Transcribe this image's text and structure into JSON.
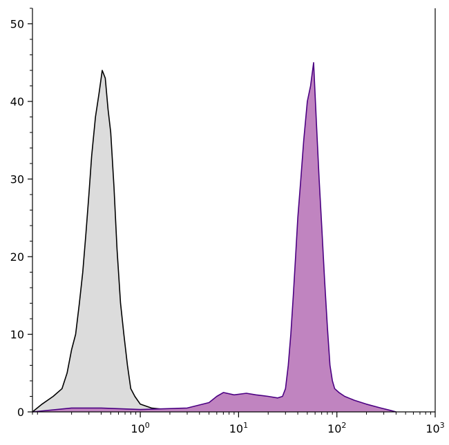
{
  "chart_data": {
    "type": "area",
    "title": "",
    "xlabel": "",
    "ylabel": "",
    "x_scale": "log",
    "xlim": [
      0.08,
      1000
    ],
    "ylim": [
      0,
      52
    ],
    "grid": false,
    "legend": "none",
    "x_ticks": [
      {
        "value": 1,
        "label": "10",
        "exp": "0"
      },
      {
        "value": 10,
        "label": "10",
        "exp": "1"
      },
      {
        "value": 100,
        "label": "10",
        "exp": "2"
      },
      {
        "value": 1000,
        "label": "10",
        "exp": "3"
      }
    ],
    "y_ticks": [
      0,
      10,
      20,
      30,
      40,
      50
    ],
    "series": [
      {
        "line_color": "#000000",
        "fill_color": "#dcdcdc",
        "points": [
          [
            0.08,
            0
          ],
          [
            0.1,
            1
          ],
          [
            0.13,
            2
          ],
          [
            0.16,
            3
          ],
          [
            0.18,
            5
          ],
          [
            0.2,
            8
          ],
          [
            0.22,
            10
          ],
          [
            0.24,
            14
          ],
          [
            0.26,
            18
          ],
          [
            0.28,
            23
          ],
          [
            0.3,
            28
          ],
          [
            0.32,
            33
          ],
          [
            0.35,
            38
          ],
          [
            0.38,
            41
          ],
          [
            0.41,
            44
          ],
          [
            0.44,
            43
          ],
          [
            0.47,
            39
          ],
          [
            0.5,
            36
          ],
          [
            0.54,
            29
          ],
          [
            0.58,
            21
          ],
          [
            0.63,
            14
          ],
          [
            0.68,
            10
          ],
          [
            0.74,
            6
          ],
          [
            0.8,
            3
          ],
          [
            0.88,
            2
          ],
          [
            1.0,
            1
          ],
          [
            1.3,
            0.5
          ],
          [
            1.8,
            0.3
          ],
          [
            2.5,
            0.2
          ],
          [
            3.0,
            0
          ]
        ]
      },
      {
        "line_color": "#4b0082",
        "fill_color": "#c084c0",
        "points": [
          [
            0.08,
            0
          ],
          [
            0.2,
            0.5
          ],
          [
            0.4,
            0.5
          ],
          [
            1,
            0.3
          ],
          [
            3,
            0.5
          ],
          [
            5,
            1.2
          ],
          [
            6,
            2
          ],
          [
            7,
            2.5
          ],
          [
            9,
            2.2
          ],
          [
            12,
            2.4
          ],
          [
            15,
            2.2
          ],
          [
            20,
            2.0
          ],
          [
            25,
            1.8
          ],
          [
            28,
            2.0
          ],
          [
            30,
            3
          ],
          [
            32,
            6
          ],
          [
            34,
            10
          ],
          [
            36,
            15
          ],
          [
            38,
            20
          ],
          [
            40,
            25
          ],
          [
            43,
            30
          ],
          [
            46,
            35
          ],
          [
            50,
            40
          ],
          [
            54,
            42
          ],
          [
            58,
            45
          ],
          [
            62,
            37
          ],
          [
            66,
            30
          ],
          [
            70,
            24
          ],
          [
            75,
            17
          ],
          [
            80,
            11
          ],
          [
            85,
            6
          ],
          [
            90,
            4
          ],
          [
            95,
            3
          ],
          [
            105,
            2.5
          ],
          [
            120,
            2
          ],
          [
            150,
            1.5
          ],
          [
            200,
            1.0
          ],
          [
            280,
            0.5
          ],
          [
            350,
            0.2
          ],
          [
            400,
            0
          ]
        ]
      }
    ]
  }
}
